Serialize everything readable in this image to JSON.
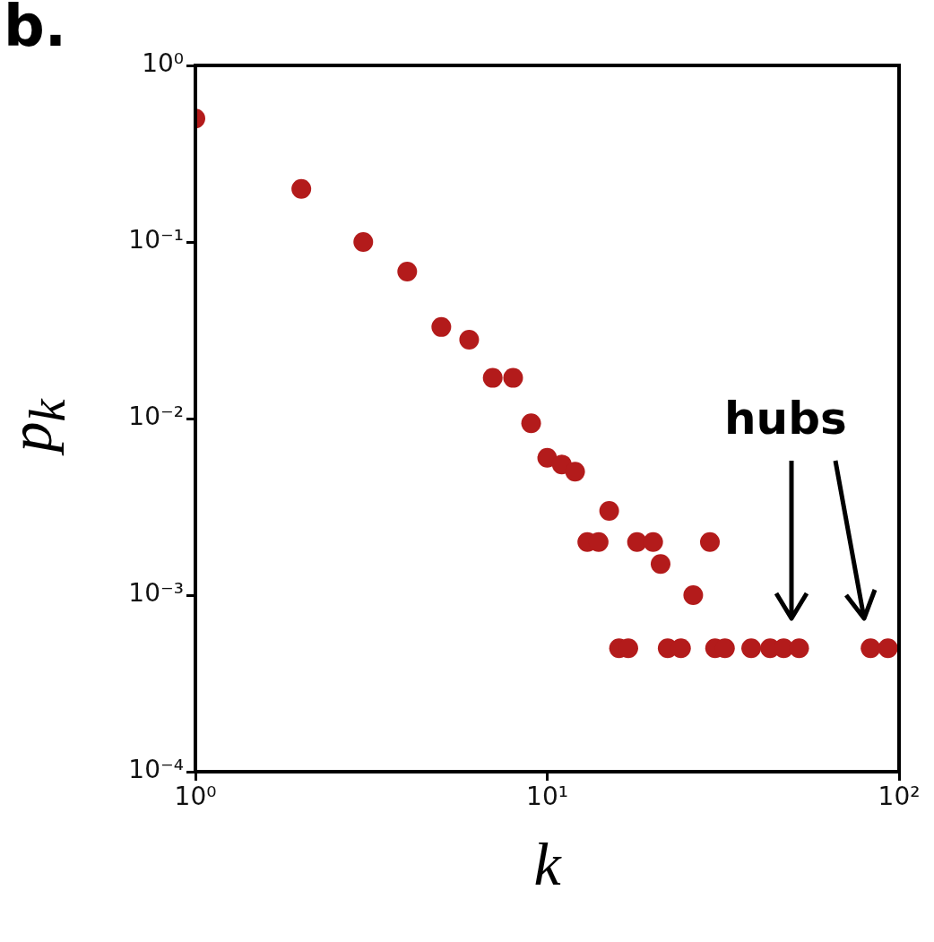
{
  "chart_data": {
    "type": "scatter",
    "xlabel": "k",
    "ylabel": "p$_{k}$",
    "annotations": [
      "b.",
      "hubs"
    ],
    "x": [
      1,
      2,
      3,
      4,
      5,
      6,
      7,
      8,
      9,
      10,
      11,
      12,
      13,
      14,
      15,
      16,
      17,
      18,
      20,
      21,
      22,
      24,
      26,
      29,
      30,
      32,
      38,
      43,
      47,
      52,
      83,
      93
    ],
    "values": [
      0.5,
      0.2,
      0.1,
      0.068,
      0.033,
      0.028,
      0.017,
      0.017,
      0.0094,
      0.006,
      0.0055,
      0.005,
      0.002,
      0.002,
      0.003,
      0.0005,
      0.0005,
      0.002,
      0.002,
      0.0015,
      0.0005,
      0.0005,
      0.001,
      0.002,
      0.0005,
      0.0005,
      0.0005,
      0.0005,
      0.0005,
      0.0005,
      0.0005,
      0.0005
    ],
    "color": "#b31b1b",
    "marker": "circle",
    "log": "xy",
    "grid": false,
    "legend": false,
    "xlim": [
      1,
      100
    ],
    "xticks": [
      {
        "value": 1,
        "label": "10⁰"
      },
      {
        "value": 10,
        "label": "10¹"
      },
      {
        "value": 100,
        "label": "10²"
      }
    ],
    "ylim": [
      0.0001,
      1
    ],
    "yticks": [
      {
        "value": 0.0001,
        "label": "10⁻⁴"
      },
      {
        "value": 0.001,
        "label": "10⁻³"
      },
      {
        "value": 0.01,
        "label": "10⁻²"
      },
      {
        "value": 0.1,
        "label": "10⁻¹"
      },
      {
        "value": 1,
        "label": "10⁰"
      }
    ]
  }
}
